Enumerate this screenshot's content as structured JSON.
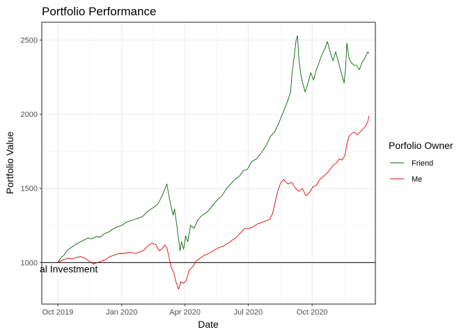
{
  "chart_data": {
    "type": "line",
    "title": "Portfolio Performance",
    "xlabel": "Date",
    "ylabel": "Portfolio Value",
    "x_ticks": [
      {
        "label": "Oct 2019",
        "date": "2019-10-01"
      },
      {
        "label": "Jan 2020",
        "date": "2020-01-01"
      },
      {
        "label": "Apr 2020",
        "date": "2020-04-01"
      },
      {
        "label": "Jul 2020",
        "date": "2020-07-01"
      },
      {
        "label": "Oct 2020",
        "date": "2020-10-01"
      }
    ],
    "xlim": [
      "2019-09-08",
      "2020-12-31"
    ],
    "y_ticks": [
      1000,
      1500,
      2000,
      2500
    ],
    "ylim": [
      720,
      2620
    ],
    "grid": true,
    "legend": {
      "title": "Porfolio Owner",
      "position": "right"
    },
    "hline": {
      "y": 1000,
      "label": "al Investment"
    },
    "series": [
      {
        "name": "Friend",
        "color": "#006400",
        "points": [
          [
            "2019-10-01",
            1000
          ],
          [
            "2019-10-05",
            1030
          ],
          [
            "2019-10-10",
            1050
          ],
          [
            "2019-10-15",
            1085
          ],
          [
            "2019-10-20",
            1100
          ],
          [
            "2019-10-26",
            1120
          ],
          [
            "2019-11-01",
            1135
          ],
          [
            "2019-11-07",
            1150
          ],
          [
            "2019-11-13",
            1165
          ],
          [
            "2019-11-19",
            1160
          ],
          [
            "2019-11-25",
            1175
          ],
          [
            "2019-12-01",
            1170
          ],
          [
            "2019-12-07",
            1195
          ],
          [
            "2019-12-13",
            1205
          ],
          [
            "2019-12-19",
            1225
          ],
          [
            "2019-12-25",
            1240
          ],
          [
            "2020-01-01",
            1250
          ],
          [
            "2020-01-07",
            1270
          ],
          [
            "2020-01-13",
            1280
          ],
          [
            "2020-01-19",
            1290
          ],
          [
            "2020-01-25",
            1300
          ],
          [
            "2020-01-31",
            1310
          ],
          [
            "2020-02-06",
            1340
          ],
          [
            "2020-02-12",
            1360
          ],
          [
            "2020-02-17",
            1375
          ],
          [
            "2020-02-21",
            1390
          ],
          [
            "2020-02-25",
            1420
          ],
          [
            "2020-02-29",
            1460
          ],
          [
            "2020-03-03",
            1495
          ],
          [
            "2020-03-06",
            1530
          ],
          [
            "2020-03-09",
            1450
          ],
          [
            "2020-03-12",
            1380
          ],
          [
            "2020-03-15",
            1320
          ],
          [
            "2020-03-17",
            1360
          ],
          [
            "2020-03-20",
            1260
          ],
          [
            "2020-03-23",
            1150
          ],
          [
            "2020-03-25",
            1080
          ],
          [
            "2020-03-27",
            1140
          ],
          [
            "2020-03-30",
            1090
          ],
          [
            "2020-04-02",
            1180
          ],
          [
            "2020-04-05",
            1140
          ],
          [
            "2020-04-09",
            1250
          ],
          [
            "2020-04-14",
            1230
          ],
          [
            "2020-04-20",
            1290
          ],
          [
            "2020-04-26",
            1320
          ],
          [
            "2020-05-03",
            1340
          ],
          [
            "2020-05-10",
            1380
          ],
          [
            "2020-05-17",
            1420
          ],
          [
            "2020-05-24",
            1450
          ],
          [
            "2020-05-31",
            1500
          ],
          [
            "2020-06-06",
            1530
          ],
          [
            "2020-06-12",
            1560
          ],
          [
            "2020-06-18",
            1580
          ],
          [
            "2020-06-24",
            1620
          ],
          [
            "2020-06-30",
            1630
          ],
          [
            "2020-07-06",
            1680
          ],
          [
            "2020-07-13",
            1700
          ],
          [
            "2020-07-20",
            1740
          ],
          [
            "2020-07-27",
            1790
          ],
          [
            "2020-08-02",
            1850
          ],
          [
            "2020-08-08",
            1880
          ],
          [
            "2020-08-14",
            1940
          ],
          [
            "2020-08-20",
            2010
          ],
          [
            "2020-08-26",
            2080
          ],
          [
            "2020-08-31",
            2150
          ],
          [
            "2020-09-02",
            2270
          ],
          [
            "2020-09-05",
            2380
          ],
          [
            "2020-09-08",
            2500
          ],
          [
            "2020-09-10",
            2530
          ],
          [
            "2020-09-12",
            2370
          ],
          [
            "2020-09-15",
            2260
          ],
          [
            "2020-09-18",
            2200
          ],
          [
            "2020-09-21",
            2150
          ],
          [
            "2020-09-25",
            2210
          ],
          [
            "2020-09-29",
            2280
          ],
          [
            "2020-10-03",
            2230
          ],
          [
            "2020-10-07",
            2300
          ],
          [
            "2020-10-11",
            2350
          ],
          [
            "2020-10-15",
            2400
          ],
          [
            "2020-10-19",
            2440
          ],
          [
            "2020-10-23",
            2490
          ],
          [
            "2020-10-27",
            2420
          ],
          [
            "2020-10-31",
            2360
          ],
          [
            "2020-11-04",
            2420
          ],
          [
            "2020-11-08",
            2350
          ],
          [
            "2020-11-12",
            2280
          ],
          [
            "2020-11-16",
            2210
          ],
          [
            "2020-11-18",
            2300
          ],
          [
            "2020-11-20",
            2480
          ],
          [
            "2020-11-23",
            2380
          ],
          [
            "2020-11-26",
            2350
          ],
          [
            "2020-11-30",
            2330
          ],
          [
            "2020-12-04",
            2330
          ],
          [
            "2020-12-08",
            2300
          ],
          [
            "2020-12-12",
            2350
          ],
          [
            "2020-12-16",
            2380
          ],
          [
            "2020-12-20",
            2420
          ],
          [
            "2020-12-22",
            2410
          ]
        ]
      },
      {
        "name": "Me",
        "color": "#e50000",
        "points": [
          [
            "2019-10-01",
            1000
          ],
          [
            "2019-10-05",
            1010
          ],
          [
            "2019-10-10",
            1020
          ],
          [
            "2019-10-16",
            1030
          ],
          [
            "2019-10-22",
            1025
          ],
          [
            "2019-10-28",
            1035
          ],
          [
            "2019-11-03",
            1040
          ],
          [
            "2019-11-09",
            1030
          ],
          [
            "2019-11-15",
            1010
          ],
          [
            "2019-11-21",
            990
          ],
          [
            "2019-11-27",
            1000
          ],
          [
            "2019-12-03",
            1010
          ],
          [
            "2019-12-09",
            1020
          ],
          [
            "2019-12-15",
            1040
          ],
          [
            "2019-12-21",
            1050
          ],
          [
            "2019-12-27",
            1060
          ],
          [
            "2020-01-02",
            1060
          ],
          [
            "2020-01-08",
            1065
          ],
          [
            "2020-01-14",
            1070
          ],
          [
            "2020-01-20",
            1060
          ],
          [
            "2020-01-26",
            1070
          ],
          [
            "2020-02-01",
            1080
          ],
          [
            "2020-02-07",
            1110
          ],
          [
            "2020-02-13",
            1130
          ],
          [
            "2020-02-19",
            1120
          ],
          [
            "2020-02-24",
            1080
          ],
          [
            "2020-02-28",
            1090
          ],
          [
            "2020-03-03",
            1120
          ],
          [
            "2020-03-06",
            1100
          ],
          [
            "2020-03-09",
            1040
          ],
          [
            "2020-03-12",
            970
          ],
          [
            "2020-03-16",
            930
          ],
          [
            "2020-03-19",
            870
          ],
          [
            "2020-03-23",
            820
          ],
          [
            "2020-03-26",
            870
          ],
          [
            "2020-03-30",
            860
          ],
          [
            "2020-04-03",
            880
          ],
          [
            "2020-04-07",
            950
          ],
          [
            "2020-04-12",
            970
          ],
          [
            "2020-04-17",
            1010
          ],
          [
            "2020-04-23",
            1030
          ],
          [
            "2020-04-29",
            1050
          ],
          [
            "2020-05-05",
            1060
          ],
          [
            "2020-05-12",
            1080
          ],
          [
            "2020-05-19",
            1100
          ],
          [
            "2020-05-26",
            1110
          ],
          [
            "2020-06-02",
            1130
          ],
          [
            "2020-06-08",
            1150
          ],
          [
            "2020-06-14",
            1170
          ],
          [
            "2020-06-20",
            1200
          ],
          [
            "2020-06-26",
            1230
          ],
          [
            "2020-07-02",
            1230
          ],
          [
            "2020-07-08",
            1240
          ],
          [
            "2020-07-14",
            1260
          ],
          [
            "2020-07-20",
            1270
          ],
          [
            "2020-07-26",
            1280
          ],
          [
            "2020-08-01",
            1290
          ],
          [
            "2020-08-05",
            1330
          ],
          [
            "2020-08-09",
            1410
          ],
          [
            "2020-08-13",
            1490
          ],
          [
            "2020-08-17",
            1540
          ],
          [
            "2020-08-21",
            1560
          ],
          [
            "2020-08-27",
            1530
          ],
          [
            "2020-09-02",
            1540
          ],
          [
            "2020-09-07",
            1500
          ],
          [
            "2020-09-12",
            1480
          ],
          [
            "2020-09-17",
            1500
          ],
          [
            "2020-09-22",
            1450
          ],
          [
            "2020-09-27",
            1470
          ],
          [
            "2020-10-02",
            1510
          ],
          [
            "2020-10-07",
            1520
          ],
          [
            "2020-10-12",
            1560
          ],
          [
            "2020-10-17",
            1580
          ],
          [
            "2020-10-22",
            1600
          ],
          [
            "2020-10-27",
            1630
          ],
          [
            "2020-11-01",
            1660
          ],
          [
            "2020-11-05",
            1670
          ],
          [
            "2020-11-09",
            1700
          ],
          [
            "2020-11-13",
            1690
          ],
          [
            "2020-11-17",
            1720
          ],
          [
            "2020-11-20",
            1800
          ],
          [
            "2020-11-23",
            1850
          ],
          [
            "2020-11-27",
            1870
          ],
          [
            "2020-12-01",
            1880
          ],
          [
            "2020-12-05",
            1860
          ],
          [
            "2020-12-09",
            1880
          ],
          [
            "2020-12-13",
            1900
          ],
          [
            "2020-12-17",
            1920
          ],
          [
            "2020-12-20",
            1950
          ],
          [
            "2020-12-22",
            1990
          ]
        ]
      }
    ]
  }
}
